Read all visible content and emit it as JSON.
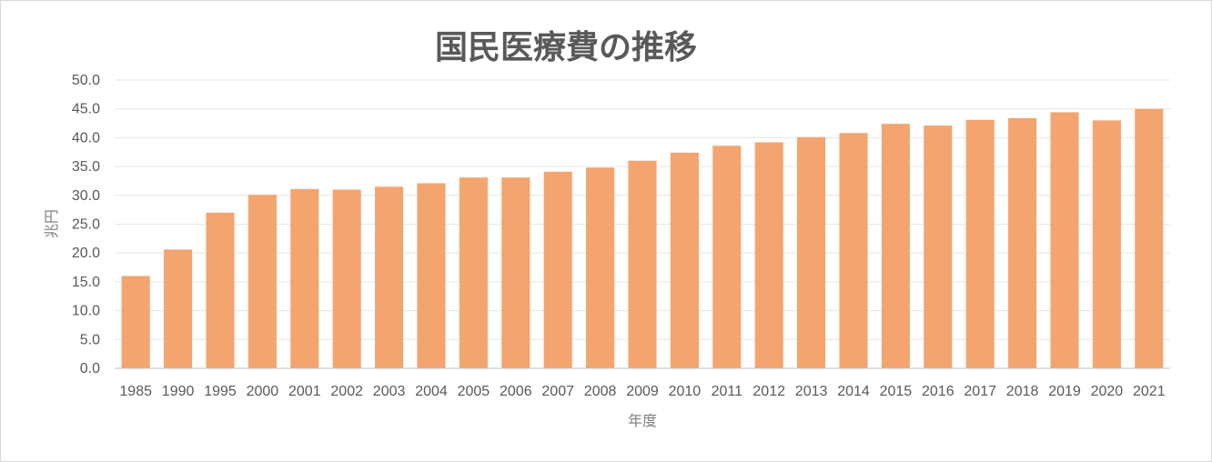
{
  "chart_data": {
    "type": "bar",
    "title": "国民医療費の推移",
    "xlabel": "年度",
    "ylabel": "兆円",
    "ylim": [
      0,
      50
    ],
    "yticks": [
      "0.0",
      "5.0",
      "10.0",
      "15.0",
      "20.0",
      "25.0",
      "30.0",
      "35.0",
      "40.0",
      "45.0",
      "50.0"
    ],
    "grid": true,
    "legend": "none",
    "bar_color": "#F4A46E",
    "categories": [
      "1985",
      "1990",
      "1995",
      "2000",
      "2001",
      "2002",
      "2003",
      "2004",
      "2005",
      "2006",
      "2007",
      "2008",
      "2009",
      "2010",
      "2011",
      "2012",
      "2013",
      "2014",
      "2015",
      "2016",
      "2017",
      "2018",
      "2019",
      "2020",
      "2021"
    ],
    "values": [
      16.0,
      20.6,
      27.0,
      30.1,
      31.1,
      31.0,
      31.5,
      32.1,
      33.1,
      33.1,
      34.1,
      34.8,
      36.0,
      37.4,
      38.6,
      39.2,
      40.1,
      40.8,
      42.4,
      42.1,
      43.1,
      43.4,
      44.4,
      43.0,
      45.0
    ]
  }
}
